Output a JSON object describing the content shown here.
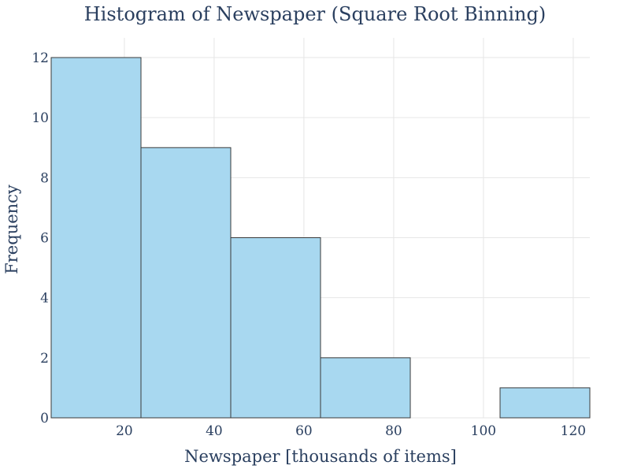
{
  "chart_data": {
    "type": "bar",
    "title": "Histogram of Newspaper (Square Root Binning)",
    "xlabel": "Newspaper [thousands of items]",
    "ylabel": "Frequency",
    "bins": [
      {
        "start": 3.7,
        "end": 23.7,
        "count": 12
      },
      {
        "start": 23.7,
        "end": 43.7,
        "count": 9
      },
      {
        "start": 43.7,
        "end": 63.7,
        "count": 6
      },
      {
        "start": 63.7,
        "end": 83.7,
        "count": 2
      },
      {
        "start": 83.7,
        "end": 103.7,
        "count": 0
      },
      {
        "start": 103.7,
        "end": 123.7,
        "count": 1
      }
    ],
    "xlim": [
      3.7,
      123.7
    ],
    "ylim": [
      0,
      12
    ],
    "xticks": [
      20,
      40,
      60,
      80,
      100,
      120
    ],
    "yticks": [
      0,
      2,
      4,
      6,
      8,
      10,
      12
    ],
    "grid": true,
    "bar_color": "#a8d8f0",
    "bar_edge_color": "#3a3a3a"
  }
}
